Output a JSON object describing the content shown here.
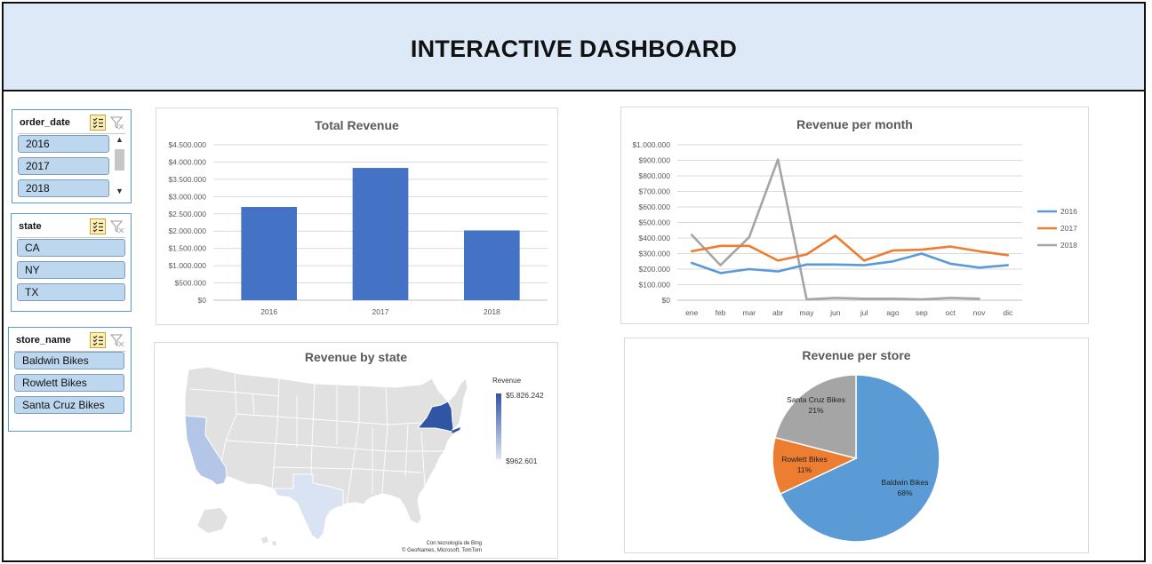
{
  "header": {
    "title": "INTERACTIVE DASHBOARD"
  },
  "slicers": {
    "order_date": {
      "title": "order_date",
      "items": [
        "2016",
        "2017",
        "2018"
      ]
    },
    "state": {
      "title": "state",
      "items": [
        "CA",
        "NY",
        "TX"
      ]
    },
    "store_name": {
      "title": "store_name",
      "items": [
        "Baldwin Bikes",
        "Rowlett Bikes",
        "Santa Cruz Bikes"
      ]
    }
  },
  "icons": {
    "multi_select": "multi-select-icon",
    "clear_filter": "clear-filter-icon"
  },
  "colors": {
    "bar": "#4472c4",
    "series2016": "#5b9bd5",
    "series2017": "#ed7d31",
    "series2018": "#a5a5a5",
    "header_bg": "#dde9f6"
  },
  "chart_data": [
    {
      "type": "bar",
      "title": "Total Revenue",
      "categories": [
        "2016",
        "2017",
        "2018"
      ],
      "values": [
        2700000,
        3830000,
        2020000
      ],
      "ylim": [
        0,
        4500000
      ],
      "yticks": [
        "$0",
        "$500.000",
        "$1.000.000",
        "$1.500.000",
        "$2.000.000",
        "$2.500.000",
        "$3.000.000",
        "$3.500.000",
        "$4.000.000",
        "$4.500.000"
      ],
      "grid": true
    },
    {
      "type": "line",
      "title": "Revenue per month",
      "categories": [
        "ene",
        "feb",
        "mar",
        "abr",
        "may",
        "jun",
        "jul",
        "ago",
        "sep",
        "oct",
        "nov",
        "dic"
      ],
      "ylim": [
        0,
        1000000
      ],
      "yticks": [
        "$0",
        "$100.000",
        "$200.000",
        "$300.000",
        "$400.000",
        "$500.000",
        "$600.000",
        "$700.000",
        "$800.000",
        "$900.000",
        "$1.000.000"
      ],
      "legend_position": "right",
      "series": [
        {
          "name": "2016",
          "values": [
            240000,
            175000,
            200000,
            185000,
            230000,
            230000,
            225000,
            250000,
            300000,
            235000,
            210000,
            225000
          ]
        },
        {
          "name": "2017",
          "values": [
            315000,
            350000,
            350000,
            255000,
            295000,
            415000,
            255000,
            320000,
            325000,
            345000,
            315000,
            290000
          ]
        },
        {
          "name": "2018",
          "values": [
            420000,
            225000,
            405000,
            905000,
            5000,
            15000,
            10000,
            10000,
            5000,
            15000,
            10000,
            null
          ]
        }
      ],
      "grid": true
    },
    {
      "type": "map",
      "title": "Revenue by state",
      "legend_title": "Revenue",
      "legend_max": "$5.826.242",
      "legend_min": "$962.601",
      "attribution_line1": "Con tecnología de Bing",
      "attribution_line2": "© GeoNames, Microsoft, TomTom",
      "regions": [
        "CA",
        "NY",
        "TX"
      ]
    },
    {
      "type": "pie",
      "title": "Revenue per store",
      "slices": [
        {
          "name": "Baldwin Bikes",
          "percent": "68%",
          "value": 68
        },
        {
          "name": "Rowlett Bikes",
          "percent": "11%",
          "value": 11
        },
        {
          "name": "Santa Cruz Bikes",
          "percent": "21%",
          "value": 21
        }
      ]
    }
  ]
}
